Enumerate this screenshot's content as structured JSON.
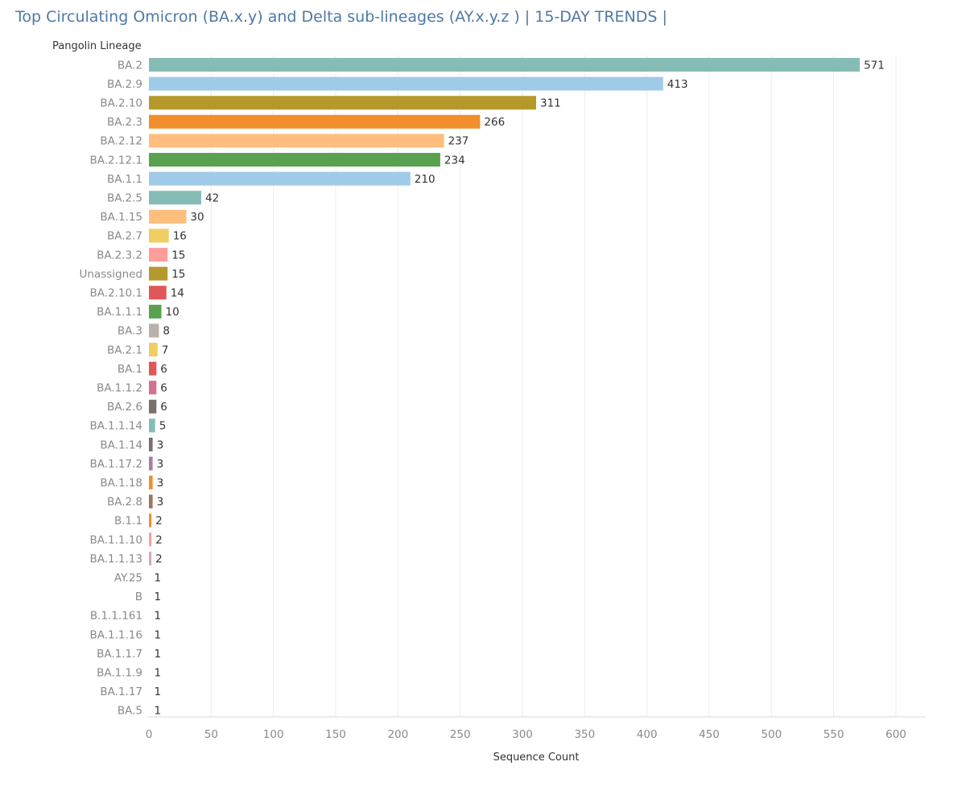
{
  "chart_data": {
    "type": "bar",
    "orientation": "horizontal",
    "title": "Top Circulating Omicron (BA.x.y) and Delta sub-lineages (AY.x.y.z )  | 15-DAY TRENDS |",
    "ylabel": "Pangolin Lineage",
    "xlabel": "Sequence Count",
    "xlim": [
      0,
      600
    ],
    "x_ticks": [
      0,
      50,
      100,
      150,
      200,
      250,
      300,
      350,
      400,
      450,
      500,
      550,
      600
    ],
    "grid": true,
    "categories": [
      "BA.2",
      "BA.2.9",
      "BA.2.10",
      "BA.2.3",
      "BA.2.12",
      "BA.2.12.1",
      "BA.1.1",
      "BA.2.5",
      "BA.1.15",
      "BA.2.7",
      "BA.2.3.2",
      "Unassigned",
      "BA.2.10.1",
      "BA.1.1.1",
      "BA.3",
      "BA.2.1",
      "BA.1",
      "BA.1.1.2",
      "BA.2.6",
      "BA.1.1.14",
      "BA.1.14",
      "BA.1.17.2",
      "BA.1.18",
      "BA.2.8",
      "B.1.1",
      "BA.1.1.10",
      "BA.1.1.13",
      "AY.25",
      "B",
      "B.1.1.161",
      "BA.1.1.16",
      "BA.1.1.7",
      "BA.1.1.9",
      "BA.1.17",
      "BA.5"
    ],
    "values": [
      571,
      413,
      311,
      266,
      237,
      234,
      210,
      42,
      30,
      16,
      15,
      15,
      14,
      10,
      8,
      7,
      6,
      6,
      6,
      5,
      3,
      3,
      3,
      3,
      2,
      2,
      2,
      1,
      1,
      1,
      1,
      1,
      1,
      1,
      1
    ],
    "colors": [
      "#86bcb6",
      "#a0cbe8",
      "#b6992d",
      "#f28e2b",
      "#ffbe7d",
      "#59a14f",
      "#a0cbe8",
      "#86bcb6",
      "#ffbe7d",
      "#f1ce63",
      "#ff9d9a",
      "#b6992d",
      "#e15759",
      "#59a14f",
      "#bab0ac",
      "#f1ce63",
      "#e15759",
      "#d37295",
      "#79706e",
      "#86bcb6",
      "#79706e",
      "#b07aa1",
      "#f28e2b",
      "#9d7660",
      "#f28e2b",
      "#ff9d9a",
      "#d4a6c8",
      "#ffffff",
      "#ffffff",
      "#ffffff",
      "#ffffff",
      "#ffffff",
      "#ffffff",
      "#ffffff",
      "#ffffff"
    ]
  }
}
